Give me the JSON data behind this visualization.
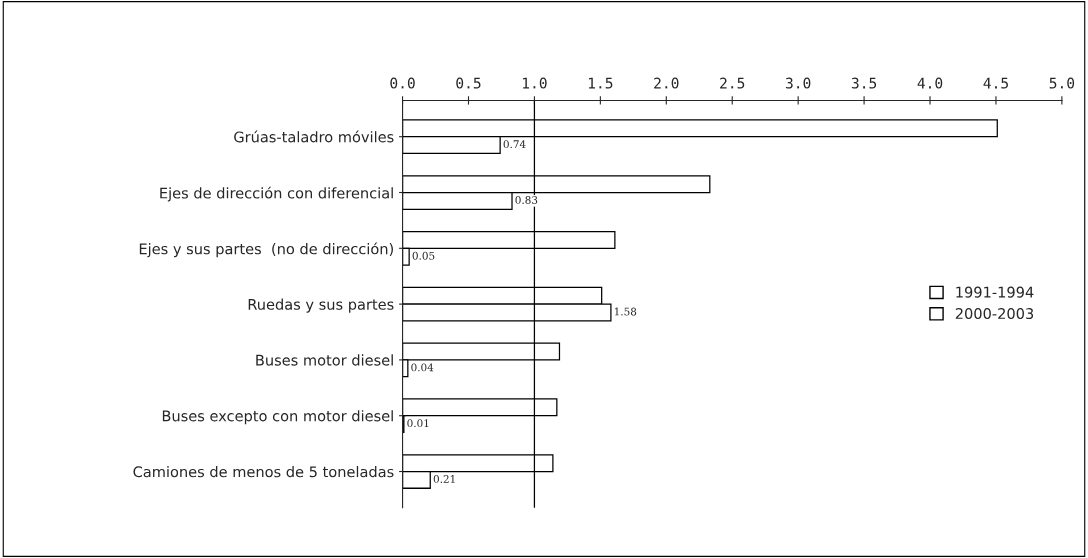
{
  "chart_data": {
    "type": "bar",
    "orientation": "horizontal",
    "categories": [
      "Grúas-taladro móviles",
      "Ejes de dirección con diferencial",
      "Ejes y sus partes  (no de dirección)",
      "Ruedas y sus partes",
      "Buses motor diesel",
      "Buses excepto con motor diesel",
      "Camiones de menos de 5 toneladas"
    ],
    "series": [
      {
        "name": "1991-1994",
        "color": "#ffffff",
        "values": [
          4.51,
          2.33,
          1.61,
          1.51,
          1.19,
          1.17,
          1.14
        ]
      },
      {
        "name": "2000-2003",
        "color": "#ffffff",
        "values": [
          0.74,
          0.83,
          0.05,
          1.58,
          0.04,
          0.01,
          0.21
        ],
        "value_labels": [
          "0.74",
          "0.83",
          "0.05",
          "1.58",
          "0.04",
          "0.01",
          "0.21"
        ]
      }
    ],
    "xlim": [
      0,
      5
    ],
    "xticks": [
      "0.0",
      "0.5",
      "1.0",
      "1.5",
      "2.0",
      "2.5",
      "3.0",
      "3.5",
      "4.0",
      "4.5",
      "5.0"
    ],
    "ref_lines": [
      {
        "axis": "x",
        "value": 1
      }
    ],
    "grid": false,
    "legend": "right"
  }
}
